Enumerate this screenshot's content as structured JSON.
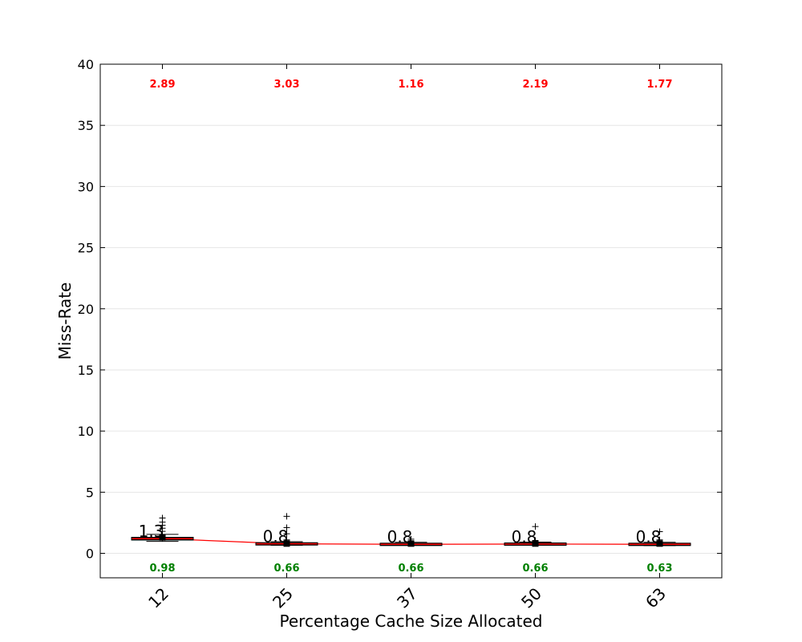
{
  "chart_data": {
    "type": "box",
    "xlabel": "Percentage Cache Size Allocated",
    "ylabel": "Miss-Rate",
    "ylim": [
      -2,
      40
    ],
    "yticks": [
      0,
      5,
      10,
      15,
      20,
      25,
      30,
      35,
      40
    ],
    "grid": "horizontal",
    "categories": [
      "12",
      "25",
      "37",
      "50",
      "63"
    ],
    "boxes": [
      {
        "q1": 1.12,
        "median": 1.2,
        "q3": 1.28,
        "whisker_low": 0.98,
        "whisker_high": 1.55,
        "mean": 1.3,
        "fliers": [
          1.8,
          2.05,
          2.3,
          2.55,
          2.89
        ]
      },
      {
        "q1": 0.72,
        "median": 0.78,
        "q3": 0.84,
        "whisker_low": 0.66,
        "whisker_high": 0.95,
        "mean": 0.8,
        "fliers": [
          1.1,
          1.6,
          2.1,
          3.03
        ]
      },
      {
        "q1": 0.7,
        "median": 0.74,
        "q3": 0.8,
        "whisker_low": 0.66,
        "whisker_high": 0.9,
        "mean": 0.8,
        "fliers": [
          1.0,
          1.16
        ]
      },
      {
        "q1": 0.7,
        "median": 0.76,
        "q3": 0.82,
        "whisker_low": 0.66,
        "whisker_high": 0.92,
        "mean": 0.8,
        "fliers": [
          1.05,
          2.19
        ]
      },
      {
        "q1": 0.68,
        "median": 0.74,
        "q3": 0.8,
        "whisker_low": 0.63,
        "whisker_high": 0.9,
        "mean": 0.8,
        "fliers": [
          1.1,
          1.77
        ]
      }
    ],
    "median_labels": [
      "1.3",
      "0.8",
      "0.8",
      "0.8",
      "0.8"
    ],
    "max_labels": [
      "2.89",
      "3.03",
      "1.16",
      "2.19",
      "1.77"
    ],
    "min_labels": [
      "0.98",
      "0.66",
      "0.66",
      "0.66",
      "0.63"
    ],
    "trend_line": [
      1.2,
      0.78,
      0.74,
      0.76,
      0.74
    ],
    "colors": {
      "max_label": "#ff0000",
      "min_label": "#008000",
      "trend_line": "#ff0000",
      "median": "#ff0000",
      "box": "#000000"
    }
  }
}
